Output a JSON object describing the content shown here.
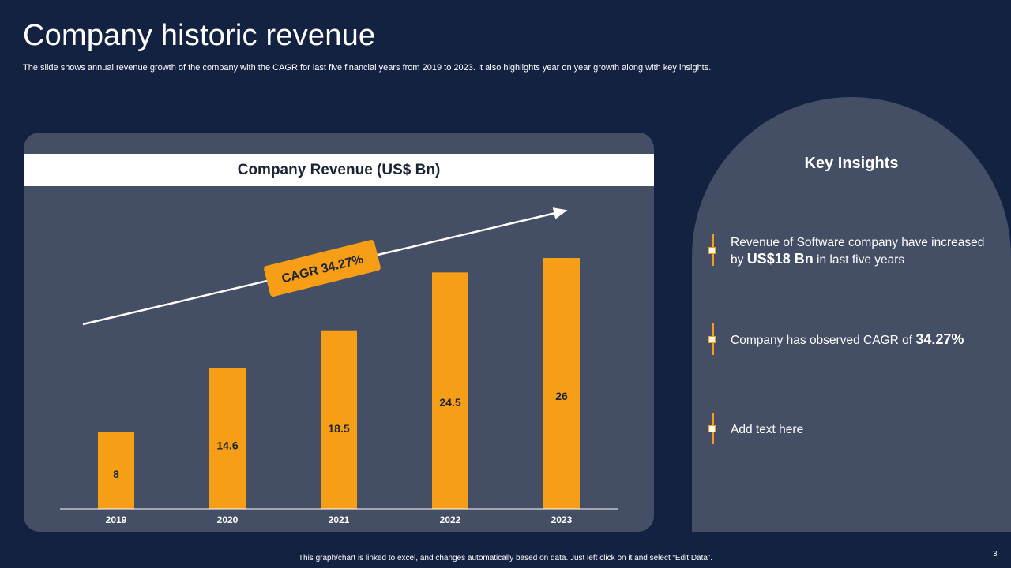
{
  "slide": {
    "title": "Company historic revenue",
    "subtitle": "The slide shows annual revenue growth of the company with the CAGR for last five financial years from 2019 to 2023. It also highlights year on year growth along with key insights.",
    "footer_note": "This graph/chart is linked to excel, and changes automatically based on data. Just left click on it and select “Edit Data”.",
    "page_number": "3"
  },
  "chart_data": {
    "type": "bar",
    "title": "Company Revenue (US$ Bn)",
    "categories": [
      "2019",
      "2020",
      "2021",
      "2022",
      "2023"
    ],
    "values": [
      8,
      14.6,
      18.5,
      24.5,
      26
    ],
    "value_labels": [
      "8",
      "14.6",
      "18.5",
      "24.5",
      "26"
    ],
    "xlabel": "",
    "ylabel": "",
    "ylim": [
      0,
      26
    ],
    "grid": false,
    "annotations": [
      {
        "text": "CAGR 34.27%",
        "kind": "trend-arrow"
      }
    ]
  },
  "insights": {
    "title": "Key Insights",
    "items": [
      {
        "pre": "Revenue of Software company have increased by ",
        "bold": "US$18 Bn",
        "post": " in last five years"
      },
      {
        "pre": "Company has observed CAGR of ",
        "bold": "34.27%",
        "post": ""
      },
      {
        "pre": "Add text here",
        "bold": "",
        "post": ""
      }
    ]
  },
  "colors": {
    "background": "#142241",
    "panel": "#444e65",
    "accent": "#f79e17",
    "text": "#ffffff",
    "label_dark": "#1b2436"
  }
}
